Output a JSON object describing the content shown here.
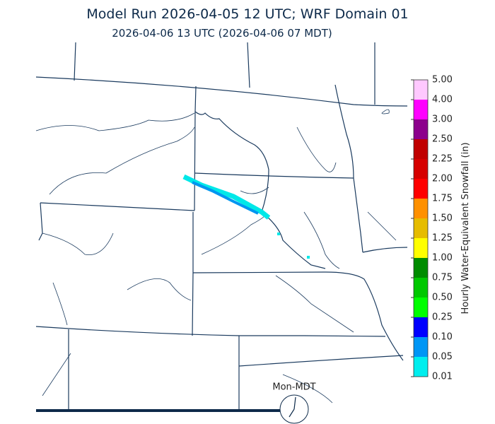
{
  "title": "Model Run 2026-04-05 12 UTC; WRF Domain 01",
  "subtitle": "2026-04-06 13 UTC  (2026-04-06 07 MDT)",
  "clock_label": "Mon-MDT",
  "colorbar": {
    "label": "Hourly Water-Equivalent Snowfall (in)",
    "ticks": [
      {
        "value": 0.01,
        "label": "0.01"
      },
      {
        "value": 0.05,
        "label": "0.05"
      },
      {
        "value": 0.1,
        "label": "0.10"
      },
      {
        "value": 0.25,
        "label": "0.25"
      },
      {
        "value": 0.5,
        "label": "0.50"
      },
      {
        "value": 0.75,
        "label": "0.75"
      },
      {
        "value": 1,
        "label": "1.00"
      },
      {
        "value": 1.25,
        "label": "1.25"
      },
      {
        "value": 1.5,
        "label": "1.50"
      },
      {
        "value": 1.75,
        "label": "1.75"
      },
      {
        "value": 2,
        "label": "2.00"
      },
      {
        "value": 2.25,
        "label": "2.25"
      },
      {
        "value": 2.5,
        "label": "2.50"
      },
      {
        "value": 3,
        "label": "3.00"
      },
      {
        "value": 4,
        "label": "4.00"
      },
      {
        "value": 5,
        "label": "5.00"
      }
    ],
    "colors": [
      "#00eeee",
      "#0096f5",
      "#0000ff",
      "#00ff00",
      "#00c800",
      "#008c00",
      "#ffff00",
      "#e6bc00",
      "#ff9000",
      "#ff0000",
      "#d60000",
      "#c00000",
      "#8c008c",
      "#ff00ff",
      "#ffc8ff"
    ]
  }
}
